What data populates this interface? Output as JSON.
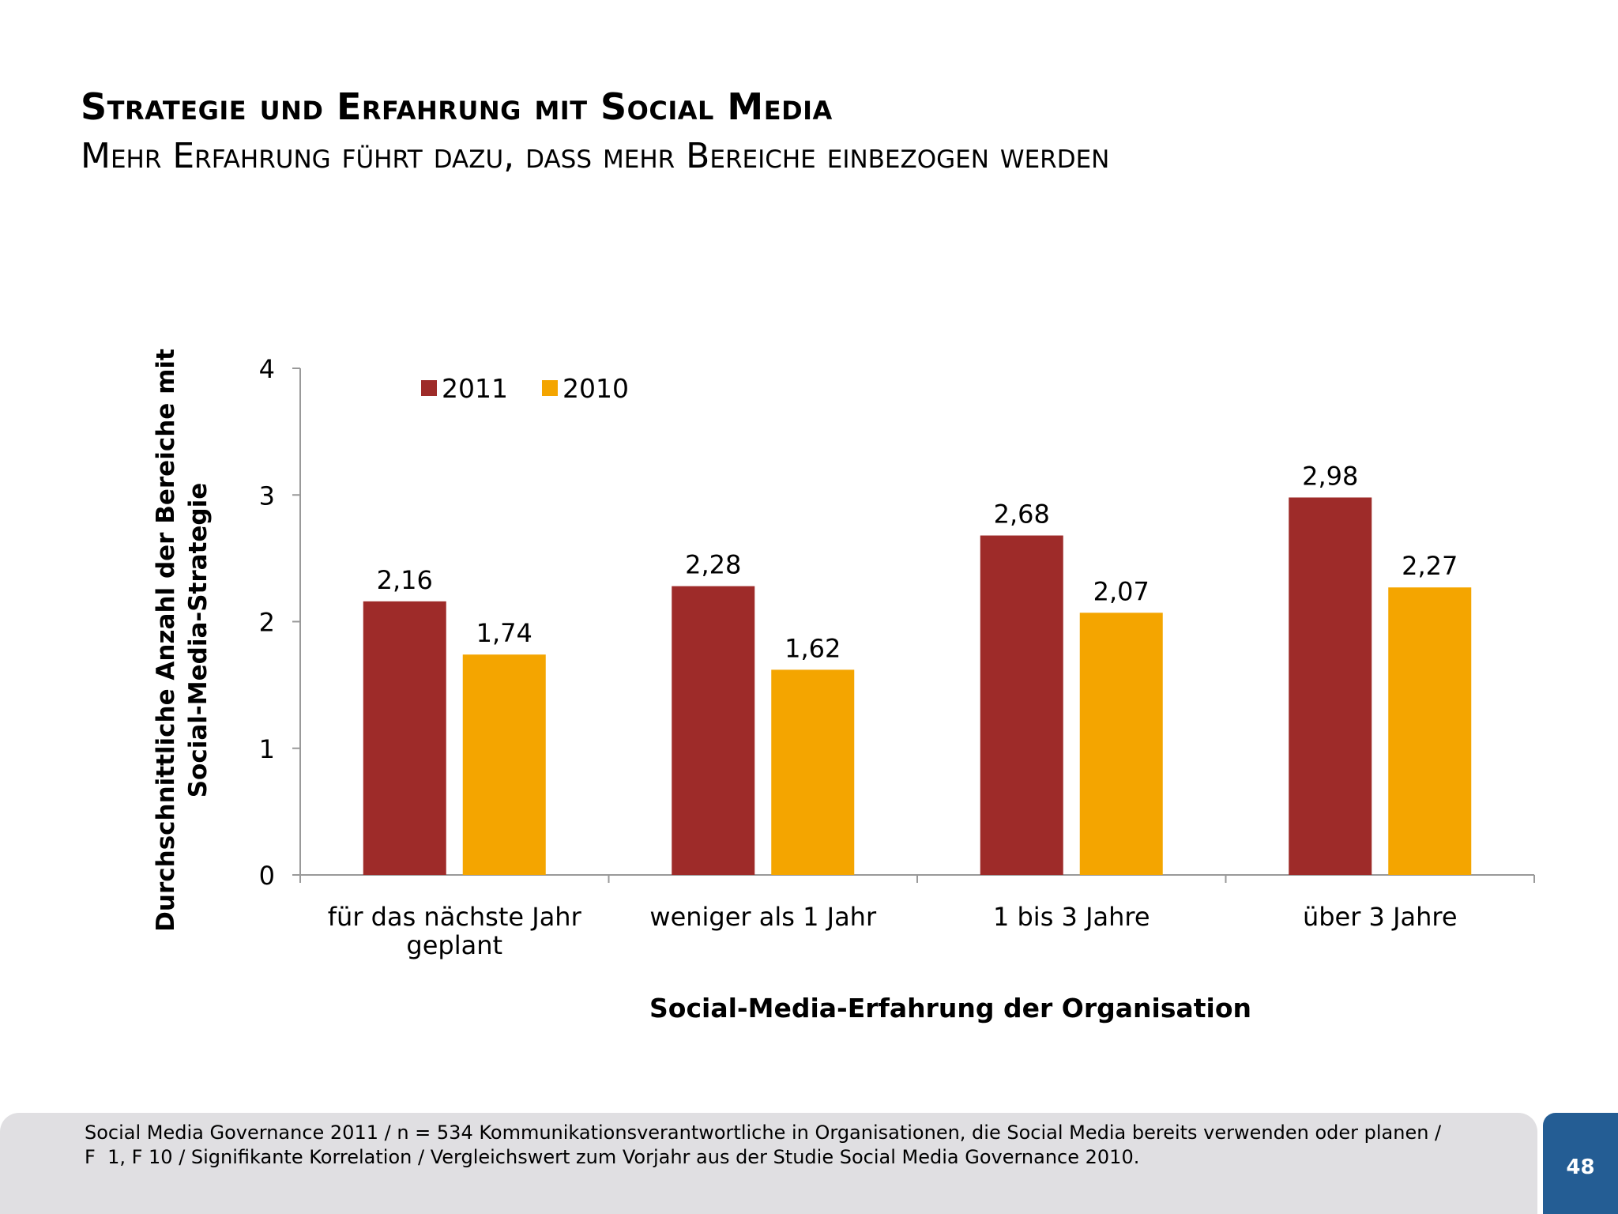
{
  "header": {
    "title": "Strategie und Erfahrung mit Social Media",
    "subtitle": "Mehr Erfahrung führt dazu, dass mehr Bereiche einbezogen werden"
  },
  "chart_data": {
    "type": "bar",
    "categories": [
      "für das nächste Jahr geplant",
      "weniger als 1 Jahr",
      "1 bis 3 Jahre",
      "über 3 Jahre"
    ],
    "category_lines": [
      [
        "für das nächste Jahr",
        "geplant"
      ],
      [
        "weniger als 1 Jahr"
      ],
      [
        "1 bis 3 Jahre"
      ],
      [
        "über 3 Jahre"
      ]
    ],
    "series": [
      {
        "name": "2011",
        "values": [
          2.16,
          2.28,
          2.68,
          2.98
        ],
        "labels": [
          "2,16",
          "2,28",
          "2,68",
          "2,98"
        ],
        "color": "#9e2b29"
      },
      {
        "name": "2010",
        "values": [
          1.74,
          1.62,
          2.07,
          2.27
        ],
        "labels": [
          "1,74",
          "1,62",
          "2,07",
          "2,27"
        ],
        "color": "#f4a500"
      }
    ],
    "xlabel": "Social-Media-Erfahrung der Organisation",
    "ylabel_lines": [
      "Durchschnittliche Anzahl der Bereiche mit",
      "Social-Media-Strategie"
    ],
    "ylim": [
      0,
      4
    ],
    "yticks": [
      "0",
      "1",
      "2",
      "3",
      "4"
    ],
    "grid": false,
    "legend": "top-left"
  },
  "footer": {
    "line1": "Social Media Governance 2011 / n = 534 Kommunikationsverantwortliche in Organisationen, die Social Media bereits verwenden oder planen /",
    "line2": "F  1, F 10 / Signifikante Korrelation / Vergleichswert zum Vorjahr aus der Studie Social Media Governance 2010.",
    "page_number": "48"
  }
}
